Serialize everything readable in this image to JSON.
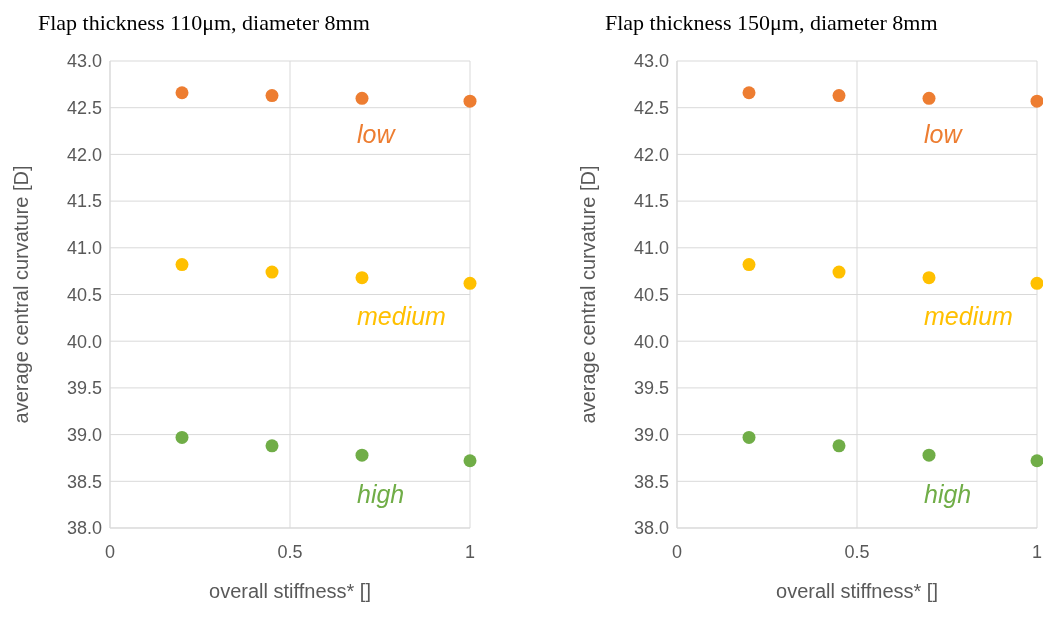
{
  "chart_data": [
    {
      "type": "scatter",
      "title": "Flap thickness 110μm, diameter 8mm",
      "xlabel": "overall stiffness* []",
      "ylabel": "average central curvature [D]",
      "x": [
        0.2,
        0.45,
        0.7,
        1
      ],
      "xlim": [
        0,
        1
      ],
      "xticks": [
        0,
        0.5,
        1
      ],
      "ylim": [
        38,
        43
      ],
      "yticks": [
        {
          "value": 38,
          "label": "38.0"
        },
        {
          "value": 38.5,
          "label": "38.5"
        },
        {
          "value": 39,
          "label": "39.0"
        },
        {
          "value": 39.5,
          "label": "39.5"
        },
        {
          "value": 40,
          "label": "40.0"
        },
        {
          "value": 40.5,
          "label": "40.5"
        },
        {
          "value": 41,
          "label": "41.0"
        },
        {
          "value": 41.5,
          "label": "41.5"
        },
        {
          "value": 42,
          "label": "42.0"
        },
        {
          "value": 42.5,
          "label": "42.5"
        },
        {
          "value": 43,
          "label": "43.0"
        }
      ],
      "grid": true,
      "marker": "circle",
      "series": [
        {
          "name": "low",
          "color": "#ed7d31",
          "values": [
            42.66,
            42.63,
            42.6,
            42.57
          ]
        },
        {
          "name": "medium",
          "color": "#ffc000",
          "values": [
            40.82,
            40.74,
            40.68,
            40.62
          ]
        },
        {
          "name": "high",
          "color": "#70ad47",
          "values": [
            38.97,
            38.88,
            38.78,
            38.72
          ]
        }
      ]
    },
    {
      "type": "scatter",
      "title": "Flap thickness 150μm, diameter 8mm",
      "xlabel": "overall stiffness* []",
      "ylabel": "average central curvature [D]",
      "x": [
        0.2,
        0.45,
        0.7,
        1
      ],
      "xlim": [
        0,
        1
      ],
      "xticks": [
        0,
        0.5,
        1
      ],
      "ylim": [
        38,
        43
      ],
      "yticks": [
        {
          "value": 38,
          "label": "38.0"
        },
        {
          "value": 38.5,
          "label": "38.5"
        },
        {
          "value": 39,
          "label": "39.0"
        },
        {
          "value": 39.5,
          "label": "39.5"
        },
        {
          "value": 40,
          "label": "40.0"
        },
        {
          "value": 40.5,
          "label": "40.5"
        },
        {
          "value": 41,
          "label": "41.0"
        },
        {
          "value": 41.5,
          "label": "41.5"
        },
        {
          "value": 42,
          "label": "42.0"
        },
        {
          "value": 42.5,
          "label": "42.5"
        },
        {
          "value": 43,
          "label": "43.0"
        }
      ],
      "grid": true,
      "marker": "circle",
      "series": [
        {
          "name": "low",
          "color": "#ed7d31",
          "values": [
            42.66,
            42.63,
            42.6,
            42.57
          ]
        },
        {
          "name": "medium",
          "color": "#ffc000",
          "values": [
            40.82,
            40.74,
            40.68,
            40.62
          ]
        },
        {
          "name": "high",
          "color": "#70ad47",
          "values": [
            38.97,
            38.88,
            38.78,
            38.72
          ]
        }
      ]
    }
  ]
}
